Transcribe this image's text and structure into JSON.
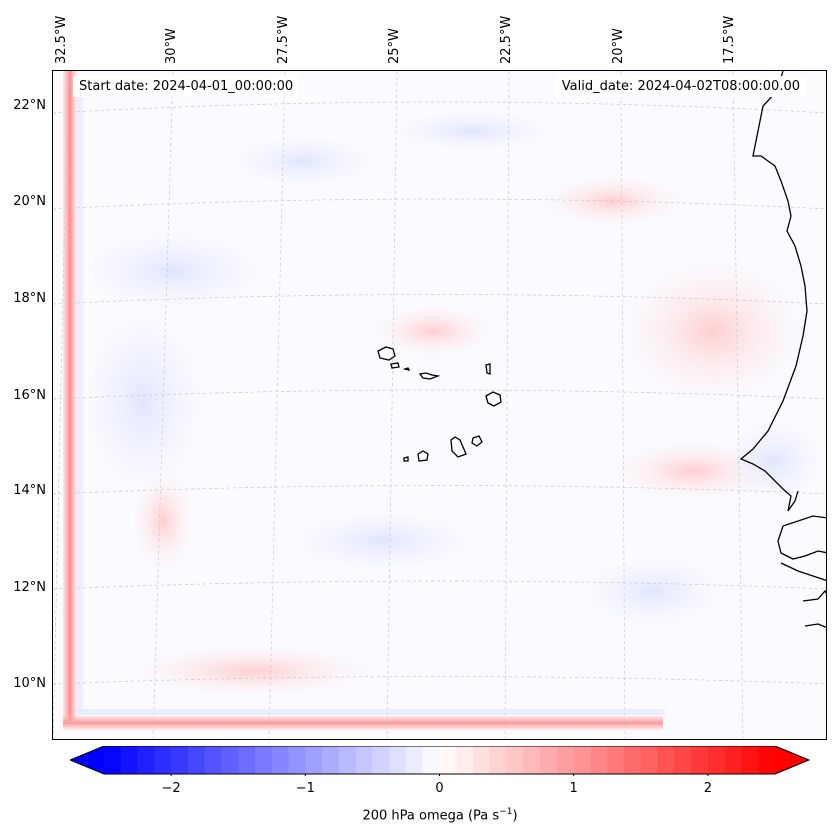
{
  "map": {
    "start_date": "Start date: 2024-04-01_00:00:00",
    "valid_date": "Valid_date: 2024-04-02T08:00:00.00",
    "lon_labels": [
      "32.5°W",
      "30°W",
      "27.5°W",
      "25°W",
      "22.5°W",
      "20°W",
      "17.5°W"
    ],
    "lat_labels": [
      "22°N",
      "20°N",
      "18°N",
      "16°N",
      "14°N",
      "12°N",
      "10°N"
    ],
    "field": "200 hPa omega",
    "colors": {
      "positive": "#ff0000",
      "negative": "#0000ff",
      "neutral": "#ffffff",
      "coast": "#000000",
      "grid": "#bbbbbb"
    }
  },
  "colorbar": {
    "label_text": "200 hPa omega (Pa s",
    "label_exp": "−1",
    "label_close": ")",
    "ticks": [
      "−2",
      "−1",
      "0",
      "1",
      "2"
    ],
    "tick_values": [
      -2,
      -1,
      0,
      1,
      2
    ],
    "vmin": -2.5,
    "vmax": 2.5
  }
}
